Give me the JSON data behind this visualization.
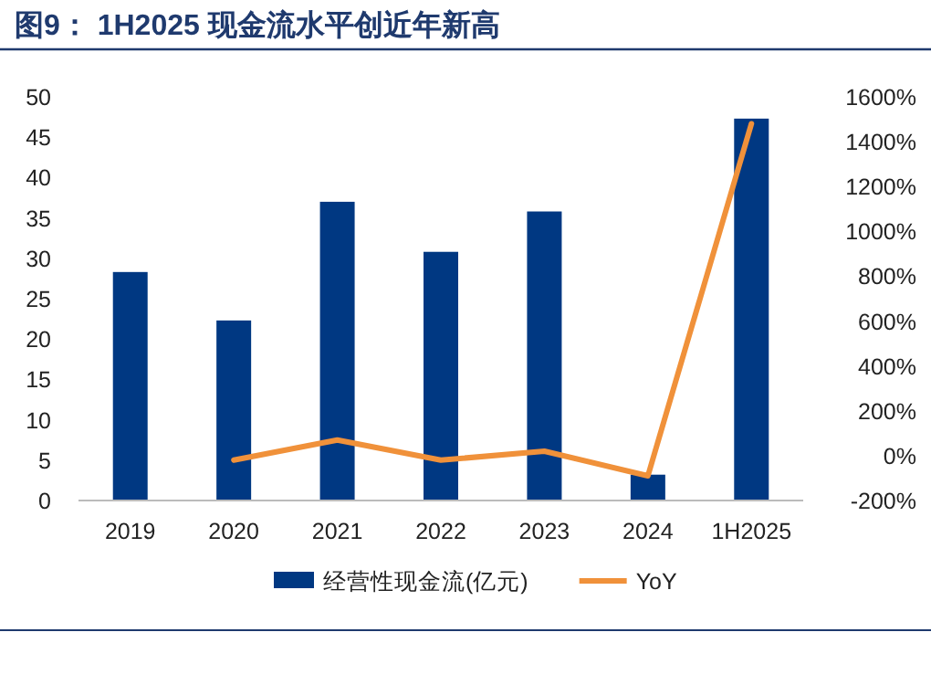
{
  "chart_data": {
    "type": "bar",
    "title": "图9： 1H2025 现金流水平创近年新高",
    "categories": [
      "2019",
      "2020",
      "2021",
      "2022",
      "2023",
      "2024",
      "1H2025"
    ],
    "series": [
      {
        "name": "经营性现金流(亿元)",
        "color": "#003882",
        "values": [
          28.3,
          22.3,
          37.0,
          30.8,
          35.8,
          3.2,
          47.3
        ]
      },
      {
        "name": "YoY",
        "type": "line",
        "axis": "y2",
        "color": "#f0913a",
        "values": [
          null,
          -20,
          70,
          -20,
          20,
          -90,
          1480
        ]
      }
    ],
    "ylim": [
      0,
      50
    ],
    "yticks": [
      0,
      5,
      10,
      15,
      20,
      25,
      30,
      35,
      40,
      45,
      50
    ],
    "y2lim": [
      -200,
      1600
    ],
    "y2ticks": [
      {
        "value": -200,
        "label": "-200%"
      },
      {
        "value": 0,
        "label": "0%"
      },
      {
        "value": 200,
        "label": "200%"
      },
      {
        "value": 400,
        "label": "400%"
      },
      {
        "value": 600,
        "label": "600%"
      },
      {
        "value": 800,
        "label": "800%"
      },
      {
        "value": 1000,
        "label": "1000%"
      },
      {
        "value": 1200,
        "label": "1200%"
      },
      {
        "value": 1400,
        "label": "1400%"
      },
      {
        "value": 1600,
        "label": "1600%"
      }
    ],
    "legend": "bottom",
    "grid": false
  }
}
